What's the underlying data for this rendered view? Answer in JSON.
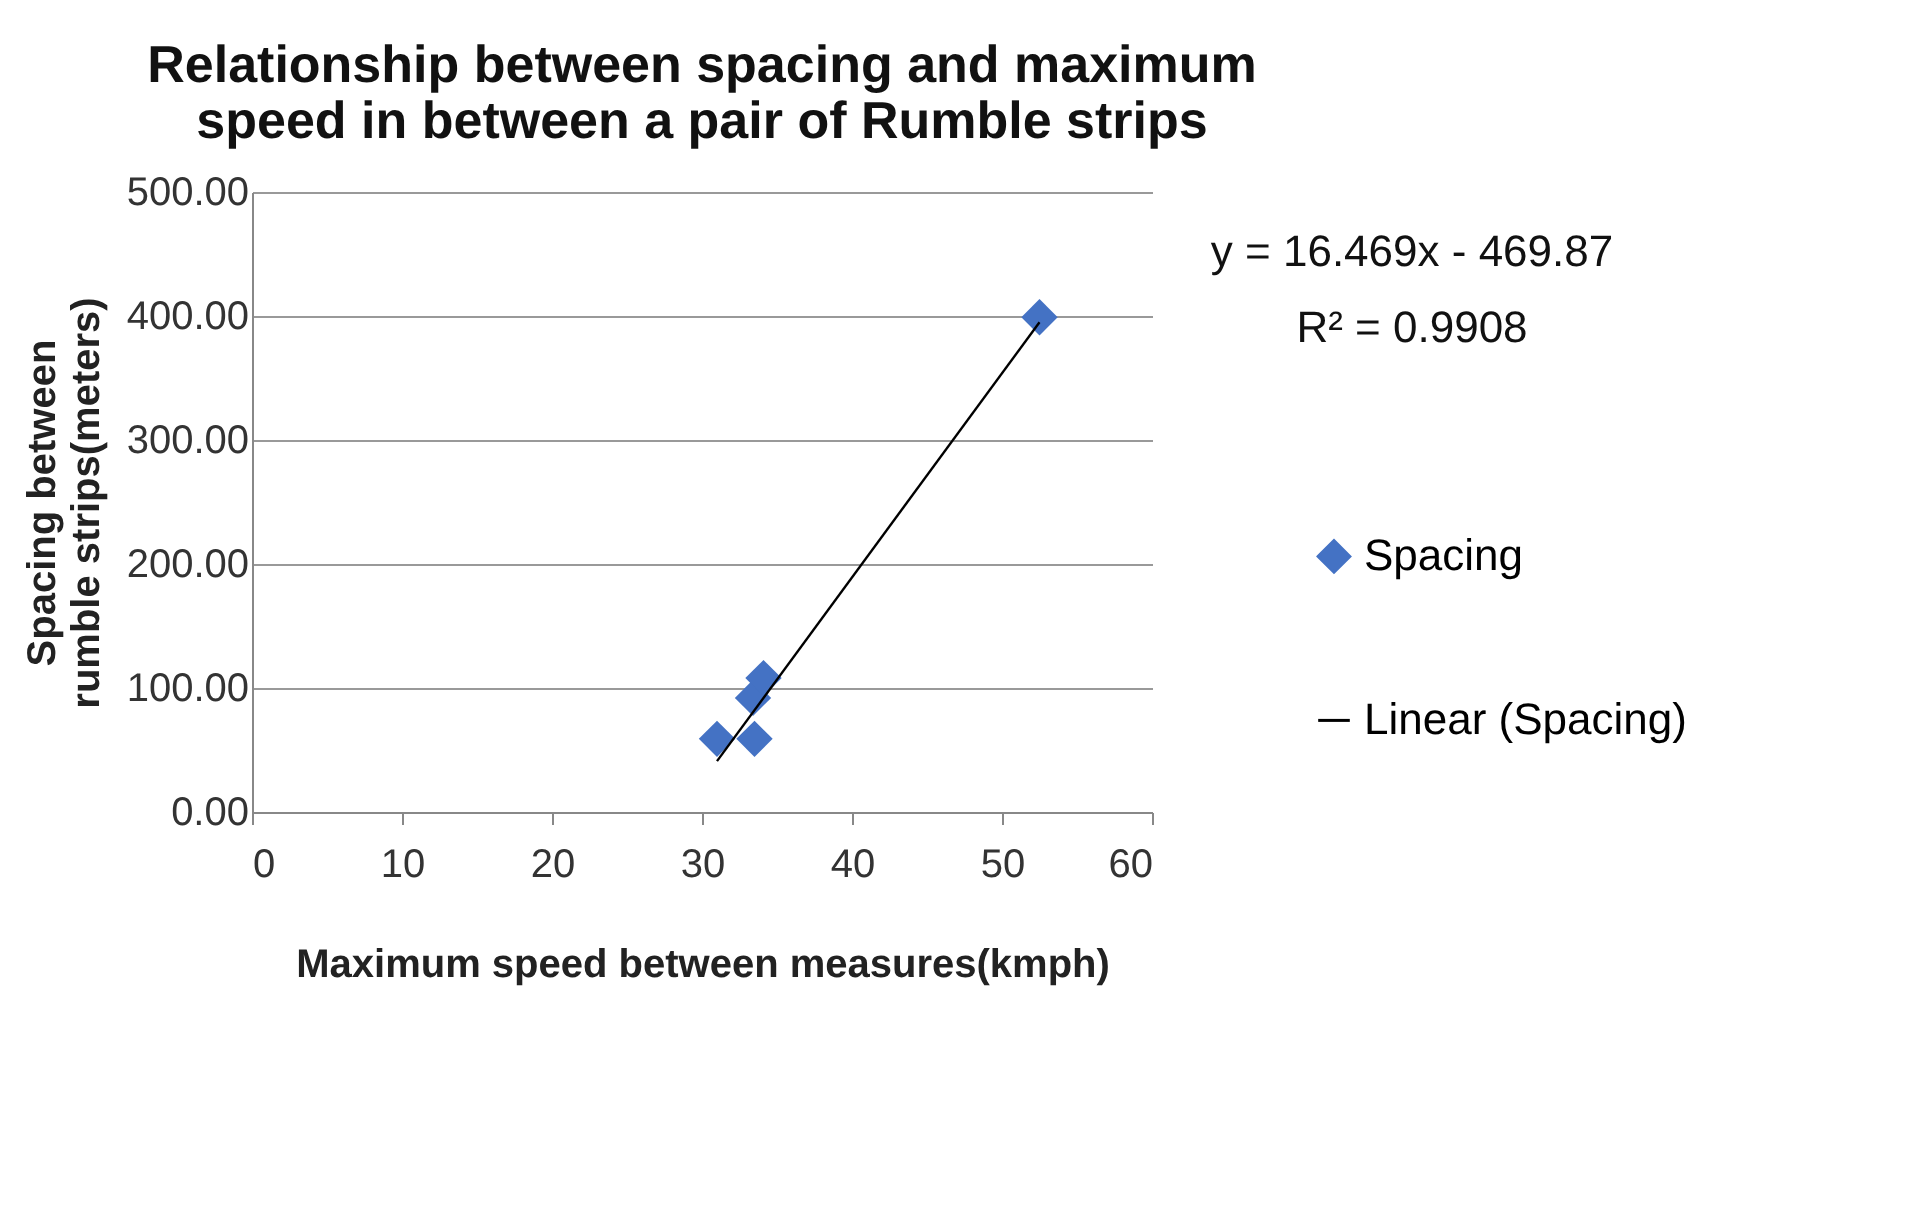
{
  "chart_data": {
    "type": "scatter",
    "title": "Relationship between spacing and maximum speed in between a pair of Rumble strips",
    "xlabel": "Maximum speed between measures(kmph)",
    "ylabel": "Spacing between rumble strips(meters)",
    "series": [
      {
        "name": "Spacing",
        "color": "#4472c4",
        "marker": "diamond",
        "x": [
          31.0,
          33.5,
          33.4,
          34.1,
          52.5
        ],
        "values": [
          59,
          59,
          92,
          108,
          399
        ]
      },
      {
        "name": "Linear (Spacing)",
        "type": "line",
        "color": "#000000",
        "marker": "none",
        "line_style": "solid",
        "x": [
          31.0,
          52.5
        ],
        "values": [
          41,
          395
        ]
      }
    ],
    "xlim": [
      0,
      60
    ],
    "xticks": [
      0,
      10,
      20,
      30,
      40,
      50,
      60
    ],
    "ylim": [
      0,
      500
    ],
    "yticks": [
      {
        "value": 0,
        "label": "0.00"
      },
      {
        "value": 100,
        "label": "100.00"
      },
      {
        "value": 200,
        "label": "200.00"
      },
      {
        "value": 300,
        "label": "300.00"
      },
      {
        "value": 400,
        "label": "400.00"
      },
      {
        "value": 500,
        "label": "500.00"
      }
    ],
    "grid": "y",
    "legend": "right",
    "annotations": [
      "y = 16.469x - 469.87",
      "R² = 0.9908"
    ]
  }
}
